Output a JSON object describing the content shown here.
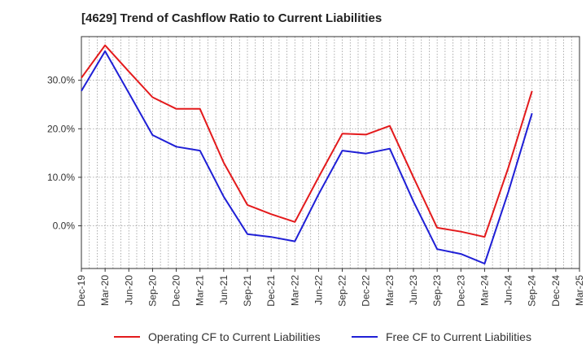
{
  "title": "[4629]  Trend of Cashflow Ratio to Current Liabilities",
  "chart_data": {
    "type": "line",
    "x": [
      "Dec-19",
      "Mar-20",
      "Jun-20",
      "Sep-20",
      "Dec-20",
      "Mar-21",
      "Jun-21",
      "Sep-21",
      "Dec-21",
      "Mar-22",
      "Jun-22",
      "Sep-22",
      "Dec-22",
      "Mar-23",
      "Jun-23",
      "Sep-23",
      "Dec-23",
      "Mar-24",
      "Jun-24",
      "Sep-24",
      "Dec-24",
      "Mar-25"
    ],
    "series": [
      {
        "name": "Operating CF to Current Liabilities",
        "color": "#e31a1c",
        "values": [
          30.5,
          37.2,
          31.8,
          26.5,
          24.1,
          24.1,
          13.0,
          4.3,
          2.4,
          0.8,
          10.0,
          19.0,
          18.8,
          20.6,
          10.0,
          -0.4,
          -1.2,
          -2.3,
          12.0,
          27.8,
          null,
          null
        ]
      },
      {
        "name": "Free CF to Current Liabilities",
        "color": "#1f1fd6",
        "values": [
          27.8,
          36.0,
          27.4,
          18.7,
          16.3,
          15.5,
          6.0,
          -1.7,
          -2.3,
          -3.2,
          6.5,
          15.5,
          14.9,
          15.9,
          5.0,
          -4.8,
          -5.8,
          -7.8,
          7.0,
          23.2,
          null,
          null
        ]
      }
    ],
    "y_ticks": [
      "0.0%",
      "10.0%",
      "20.0%",
      "30.0%"
    ],
    "y_tick_values": [
      0,
      10,
      20,
      30
    ],
    "ylim": [
      -8.8,
      39.0
    ],
    "grid": true,
    "legend_position": "bottom"
  }
}
